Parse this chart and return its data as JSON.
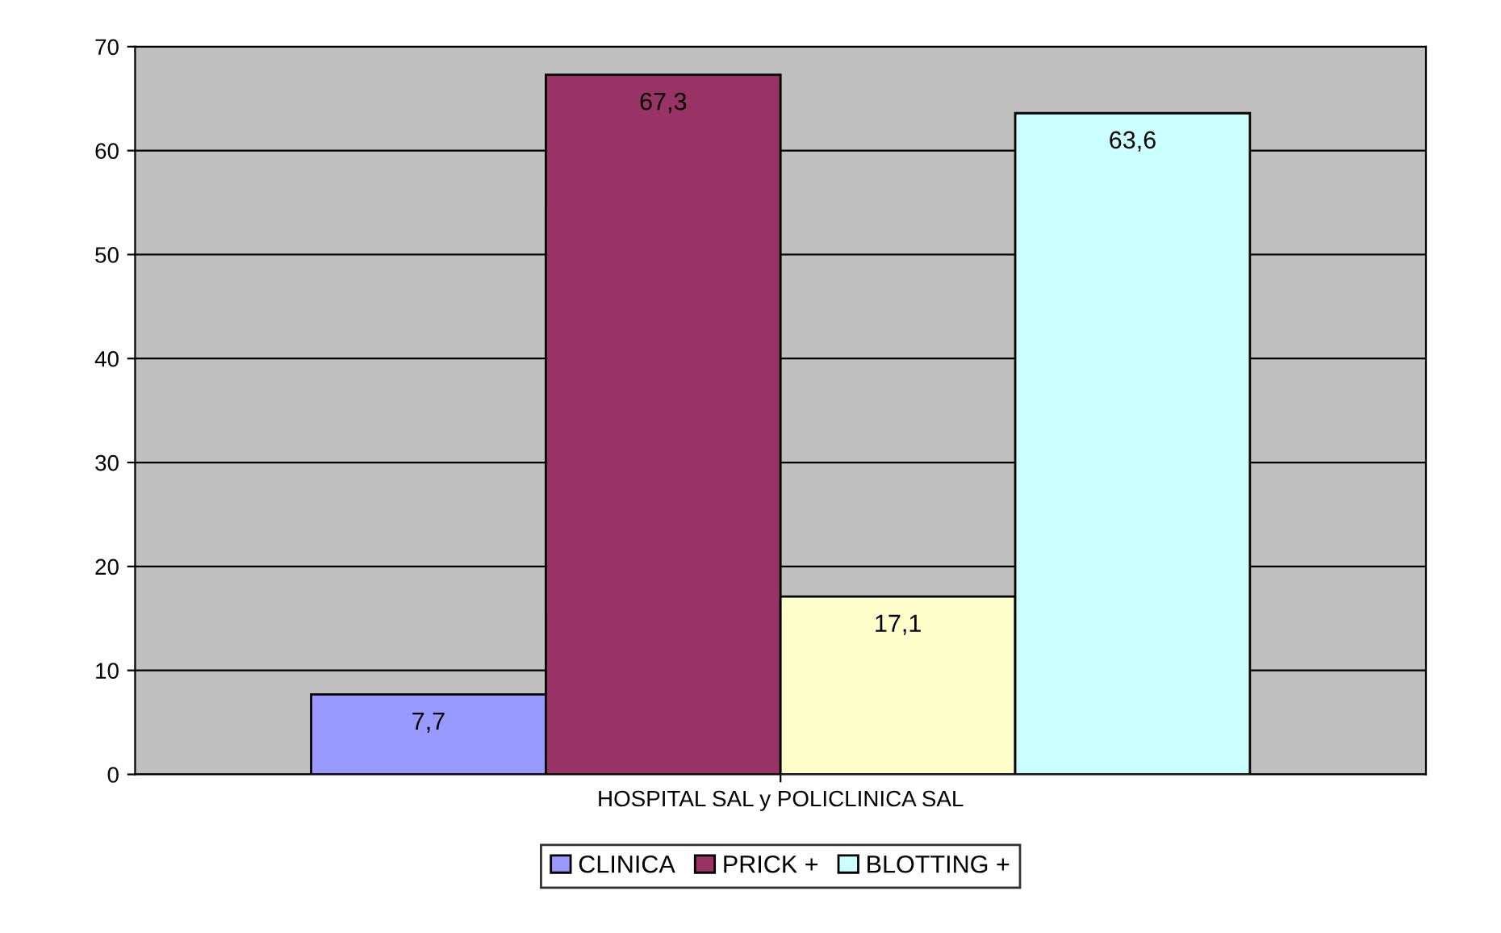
{
  "chart_data": {
    "type": "bar",
    "categories": [
      "HOSPITAL SAL y POLICLINICA SAL"
    ],
    "series": [
      {
        "name": "CLINICA",
        "color": "#9999ff",
        "values": [
          7.7
        ],
        "value_labels": [
          "7,7"
        ]
      },
      {
        "name": "PRICK +",
        "color": "#993366",
        "values": [
          67.3
        ],
        "value_labels": [
          "67,3"
        ]
      },
      {
        "color": "#ffffcc",
        "values": [
          17.1
        ],
        "value_labels": [
          "17,1"
        ]
      },
      {
        "name": "BLOTTING +",
        "color": "#ccffff",
        "values": [
          63.6
        ],
        "value_labels": [
          "63,6"
        ]
      }
    ],
    "ylim": [
      0,
      70
    ],
    "yticks": [
      0,
      10,
      20,
      30,
      40,
      50,
      60,
      70
    ],
    "grid": "y",
    "legend": "bottom"
  }
}
